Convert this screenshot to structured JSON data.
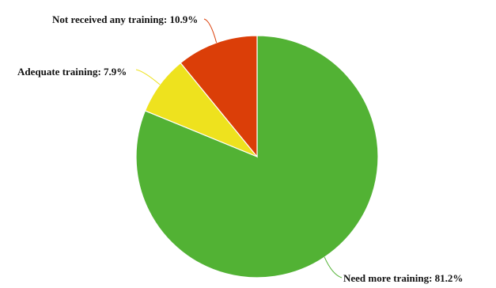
{
  "chart_data": {
    "type": "pie",
    "slices": [
      {
        "label": "Need more training",
        "value": 81.2,
        "display": "Need more training: 81.2%",
        "color": "#52b234"
      },
      {
        "label": "Adequate training",
        "value": 7.9,
        "display": "Adequate training: 7.9%",
        "color": "#eee21e"
      },
      {
        "label": "Not received any training",
        "value": 10.9,
        "display": "Not received any training: 10.9%",
        "color": "#db3e08"
      }
    ],
    "start": "12 o'clock",
    "direction": "clockwise",
    "legend": "none",
    "data_labels": "outside with leader lines"
  }
}
